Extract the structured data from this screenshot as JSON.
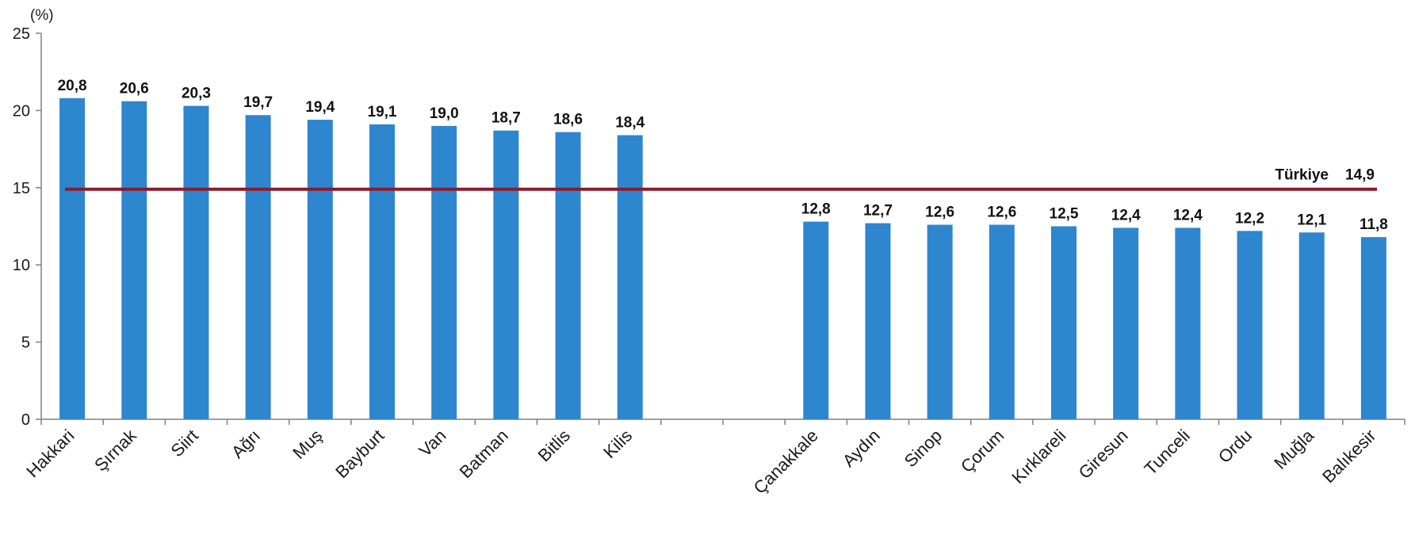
{
  "chart_data": {
    "type": "bar",
    "unit_label": "(%)",
    "categories": [
      "Hakkari",
      "Şırnak",
      "Siirt",
      "Ağrı",
      "Muş",
      "Bayburt",
      "Van",
      "Batman",
      "Bitlis",
      "Kilis",
      "",
      "",
      "Çanakkale",
      "Aydın",
      "Sinop",
      "Çorum",
      "Kırklareli",
      "Giresun",
      "Tunceli",
      "Ordu",
      "Muğla",
      "Balıkesir"
    ],
    "values": [
      20.8,
      20.6,
      20.3,
      19.7,
      19.4,
      19.1,
      19.0,
      18.7,
      18.6,
      18.4,
      null,
      null,
      12.8,
      12.7,
      12.6,
      12.6,
      12.5,
      12.4,
      12.4,
      12.2,
      12.1,
      11.8
    ],
    "data_labels": [
      "20,8",
      "20,6",
      "20,3",
      "19,7",
      "19,4",
      "19,1",
      "19,0",
      "18,7",
      "18,6",
      "18,4",
      "",
      "",
      "12,8",
      "12,7",
      "12,6",
      "12,6",
      "12,5",
      "12,4",
      "12,4",
      "12,2",
      "12,1",
      "11,8"
    ],
    "ylim": [
      0,
      25
    ],
    "yticks": [
      0,
      5,
      10,
      15,
      20,
      25
    ],
    "ytick_labels": [
      "0",
      "5",
      "10",
      "15",
      "20",
      "25"
    ],
    "reference_line": {
      "label": "Türkiye",
      "value": 14.9,
      "value_label": "14,9",
      "color": "#8b1a2e"
    },
    "bar_color": "#2e86cf",
    "grid": false
  }
}
